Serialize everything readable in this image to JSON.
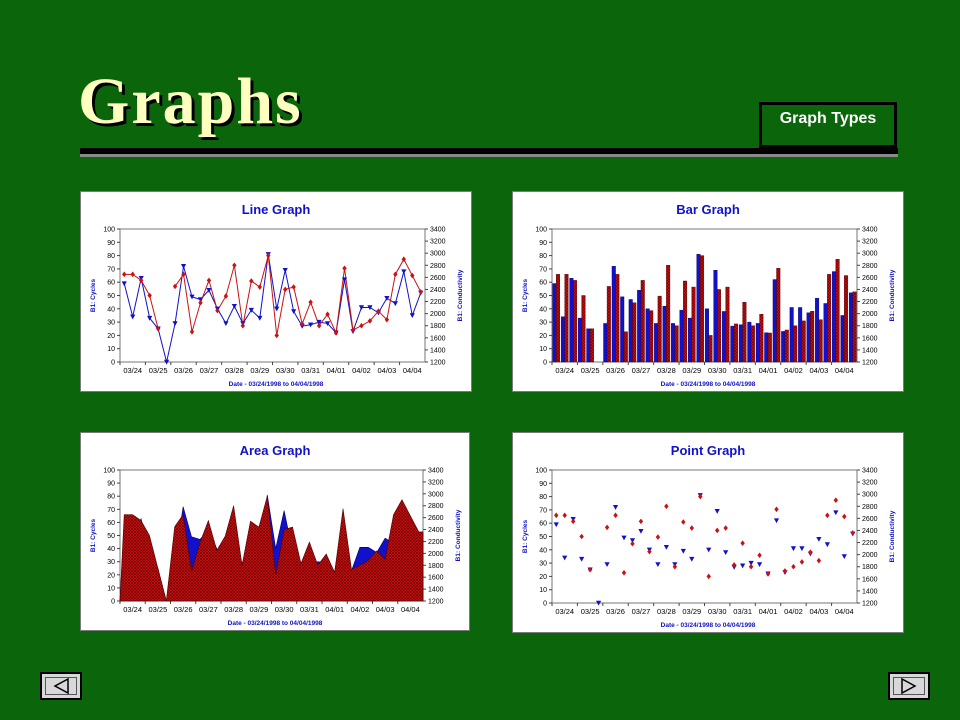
{
  "slide": {
    "title": "Graphs",
    "graph_types_button": "Graph Types"
  },
  "colors": {
    "background": "#0b650b",
    "cycles": "#1111cc",
    "conductivity": "#cc1111",
    "title_text": "#1111cc"
  },
  "nav": {
    "prev_icon": "triangle-left-icon",
    "next_icon": "triangle-right-icon"
  },
  "shared": {
    "xlabel": "Date - 03/24/1998 to 04/04/1998",
    "ylabel_left": "B1: Cycles",
    "ylabel_right": "B1: Conductivity",
    "x_ticks": [
      "03/24",
      "03/25",
      "03/26",
      "03/27",
      "03/28",
      "03/29",
      "03/30",
      "03/31",
      "04/01",
      "04/02",
      "04/03",
      "04/04"
    ],
    "y_left_ticks": [
      "0",
      "10",
      "20",
      "30",
      "40",
      "50",
      "60",
      "70",
      "80",
      "90",
      "100"
    ],
    "y_right_ticks": [
      "1200",
      "1400",
      "1600",
      "1800",
      "2000",
      "2200",
      "2400",
      "2600",
      "2800",
      "3000",
      "3200",
      "3400"
    ]
  },
  "chart_data": [
    {
      "type": "line",
      "title": "Line Graph",
      "xlabel": "Date - 03/24/1998 to 04/04/1998",
      "ylabel": "B1: Cycles",
      "ylabel_right": "B1: Conductivity",
      "ylim": [
        0,
        100
      ],
      "ylim_right": [
        1200,
        3400
      ],
      "x": [
        "03/24",
        "03/24",
        "03/24",
        "03/25",
        "03/25",
        "03/25",
        "03/26",
        "03/26",
        "03/26",
        "03/27",
        "03/27",
        "03/27",
        "03/28",
        "03/28",
        "03/28",
        "03/29",
        "03/29",
        "03/29",
        "03/30",
        "03/30",
        "03/30",
        "03/31",
        "03/31",
        "03/31",
        "04/01",
        "04/01",
        "04/01",
        "04/02",
        "04/02",
        "04/02",
        "04/03",
        "04/03",
        "04/03",
        "04/04",
        "04/04",
        "04/04"
      ],
      "series": [
        {
          "name": "B1: Cycles",
          "axis": "left",
          "values": [
            59,
            34,
            63,
            33,
            25,
            0,
            29,
            72,
            49,
            47,
            54,
            40,
            29,
            42,
            29,
            39,
            33,
            81,
            40,
            69,
            38,
            27,
            28,
            30,
            29,
            22,
            62,
            23,
            41,
            41,
            37,
            48,
            44,
            68,
            35,
            52
          ]
        },
        {
          "name": "B1: Conductivity",
          "axis": "right",
          "values": [
            2650,
            2650,
            2550,
            2300,
            1750,
            null,
            2450,
            2650,
            1700,
            2180,
            2550,
            2050,
            2290,
            2800,
            1800,
            2540,
            2440,
            2960,
            1640,
            2400,
            2440,
            1830,
            2190,
            1800,
            1990,
            1680,
            2750,
            1730,
            1800,
            1880,
            2040,
            1900,
            2650,
            2900,
            2630,
            2360
          ]
        }
      ]
    },
    {
      "type": "bar",
      "title": "Bar Graph",
      "xlabel": "Date - 03/24/1998 to 04/04/1998",
      "ylabel": "B1: Cycles",
      "ylabel_right": "B1: Conductivity",
      "ylim": [
        0,
        100
      ],
      "ylim_right": [
        1200,
        3400
      ],
      "x": [
        "03/24",
        "03/24",
        "03/24",
        "03/25",
        "03/25",
        "03/25",
        "03/26",
        "03/26",
        "03/26",
        "03/27",
        "03/27",
        "03/27",
        "03/28",
        "03/28",
        "03/28",
        "03/29",
        "03/29",
        "03/29",
        "03/30",
        "03/30",
        "03/30",
        "03/31",
        "03/31",
        "03/31",
        "04/01",
        "04/01",
        "04/01",
        "04/02",
        "04/02",
        "04/02",
        "04/03",
        "04/03",
        "04/03",
        "04/04",
        "04/04",
        "04/04"
      ],
      "series": [
        {
          "name": "B1: Cycles",
          "axis": "left",
          "values": [
            59,
            34,
            63,
            33,
            25,
            0,
            29,
            72,
            49,
            47,
            54,
            40,
            29,
            42,
            29,
            39,
            33,
            81,
            40,
            69,
            38,
            27,
            28,
            30,
            29,
            22,
            62,
            23,
            41,
            41,
            37,
            48,
            44,
            68,
            35,
            52
          ]
        },
        {
          "name": "B1: Conductivity",
          "axis": "right",
          "values": [
            2650,
            2650,
            2550,
            2300,
            1750,
            null,
            2450,
            2650,
            1700,
            2180,
            2550,
            2050,
            2290,
            2800,
            1800,
            2540,
            2440,
            2960,
            1640,
            2400,
            2440,
            1830,
            2190,
            1800,
            1990,
            1680,
            2750,
            1730,
            1800,
            1880,
            2040,
            1900,
            2650,
            2900,
            2630,
            2360
          ]
        }
      ]
    },
    {
      "type": "area",
      "title": "Area Graph",
      "xlabel": "Date - 03/24/1998 to 04/04/1998",
      "ylabel": "B1: Cycles",
      "ylabel_right": "B1: Conductivity",
      "ylim": [
        0,
        100
      ],
      "ylim_right": [
        1200,
        3400
      ],
      "x": [
        "03/24",
        "03/24",
        "03/24",
        "03/25",
        "03/25",
        "03/25",
        "03/26",
        "03/26",
        "03/26",
        "03/27",
        "03/27",
        "03/27",
        "03/28",
        "03/28",
        "03/28",
        "03/29",
        "03/29",
        "03/29",
        "03/30",
        "03/30",
        "03/30",
        "03/31",
        "03/31",
        "03/31",
        "04/01",
        "04/01",
        "04/01",
        "04/02",
        "04/02",
        "04/02",
        "04/03",
        "04/03",
        "04/03",
        "04/04",
        "04/04",
        "04/04"
      ],
      "series": [
        {
          "name": "B1: Cycles",
          "axis": "left",
          "values": [
            59,
            34,
            63,
            33,
            25,
            0,
            29,
            72,
            49,
            47,
            54,
            40,
            29,
            42,
            29,
            39,
            33,
            81,
            40,
            69,
            38,
            27,
            28,
            30,
            29,
            22,
            62,
            23,
            41,
            41,
            37,
            48,
            44,
            68,
            35,
            52
          ]
        },
        {
          "name": "B1: Conductivity",
          "axis": "right",
          "values": [
            2650,
            2650,
            2550,
            2300,
            1750,
            null,
            2450,
            2650,
            1700,
            2180,
            2550,
            2050,
            2290,
            2800,
            1800,
            2540,
            2440,
            2960,
            1640,
            2400,
            2440,
            1830,
            2190,
            1800,
            1990,
            1680,
            2750,
            1730,
            1800,
            1880,
            2040,
            1900,
            2650,
            2900,
            2630,
            2360
          ]
        }
      ]
    },
    {
      "type": "scatter",
      "title": "Point Graph",
      "xlabel": "Date - 03/24/1998 to 04/04/1998",
      "ylabel": "B1: Cycles",
      "ylabel_right": "B1: Conductivity",
      "ylim": [
        0,
        100
      ],
      "ylim_right": [
        1200,
        3400
      ],
      "x": [
        "03/24",
        "03/24",
        "03/24",
        "03/25",
        "03/25",
        "03/25",
        "03/26",
        "03/26",
        "03/26",
        "03/27",
        "03/27",
        "03/27",
        "03/28",
        "03/28",
        "03/28",
        "03/29",
        "03/29",
        "03/29",
        "03/30",
        "03/30",
        "03/30",
        "03/31",
        "03/31",
        "03/31",
        "04/01",
        "04/01",
        "04/01",
        "04/02",
        "04/02",
        "04/02",
        "04/03",
        "04/03",
        "04/03",
        "04/04",
        "04/04",
        "04/04"
      ],
      "series": [
        {
          "name": "B1: Cycles",
          "axis": "left",
          "values": [
            59,
            34,
            63,
            33,
            25,
            0,
            29,
            72,
            49,
            47,
            54,
            40,
            29,
            42,
            29,
            39,
            33,
            81,
            40,
            69,
            38,
            27,
            28,
            30,
            29,
            22,
            62,
            23,
            41,
            41,
            37,
            48,
            44,
            68,
            35,
            52
          ]
        },
        {
          "name": "B1: Conductivity",
          "axis": "right",
          "values": [
            2650,
            2650,
            2550,
            2300,
            1750,
            null,
            2450,
            2650,
            1700,
            2180,
            2550,
            2050,
            2290,
            2800,
            1800,
            2540,
            2440,
            2960,
            1640,
            2400,
            2440,
            1830,
            2190,
            1800,
            1990,
            1680,
            2750,
            1730,
            1800,
            1880,
            2040,
            1900,
            2650,
            2900,
            2630,
            2360
          ]
        }
      ]
    }
  ]
}
